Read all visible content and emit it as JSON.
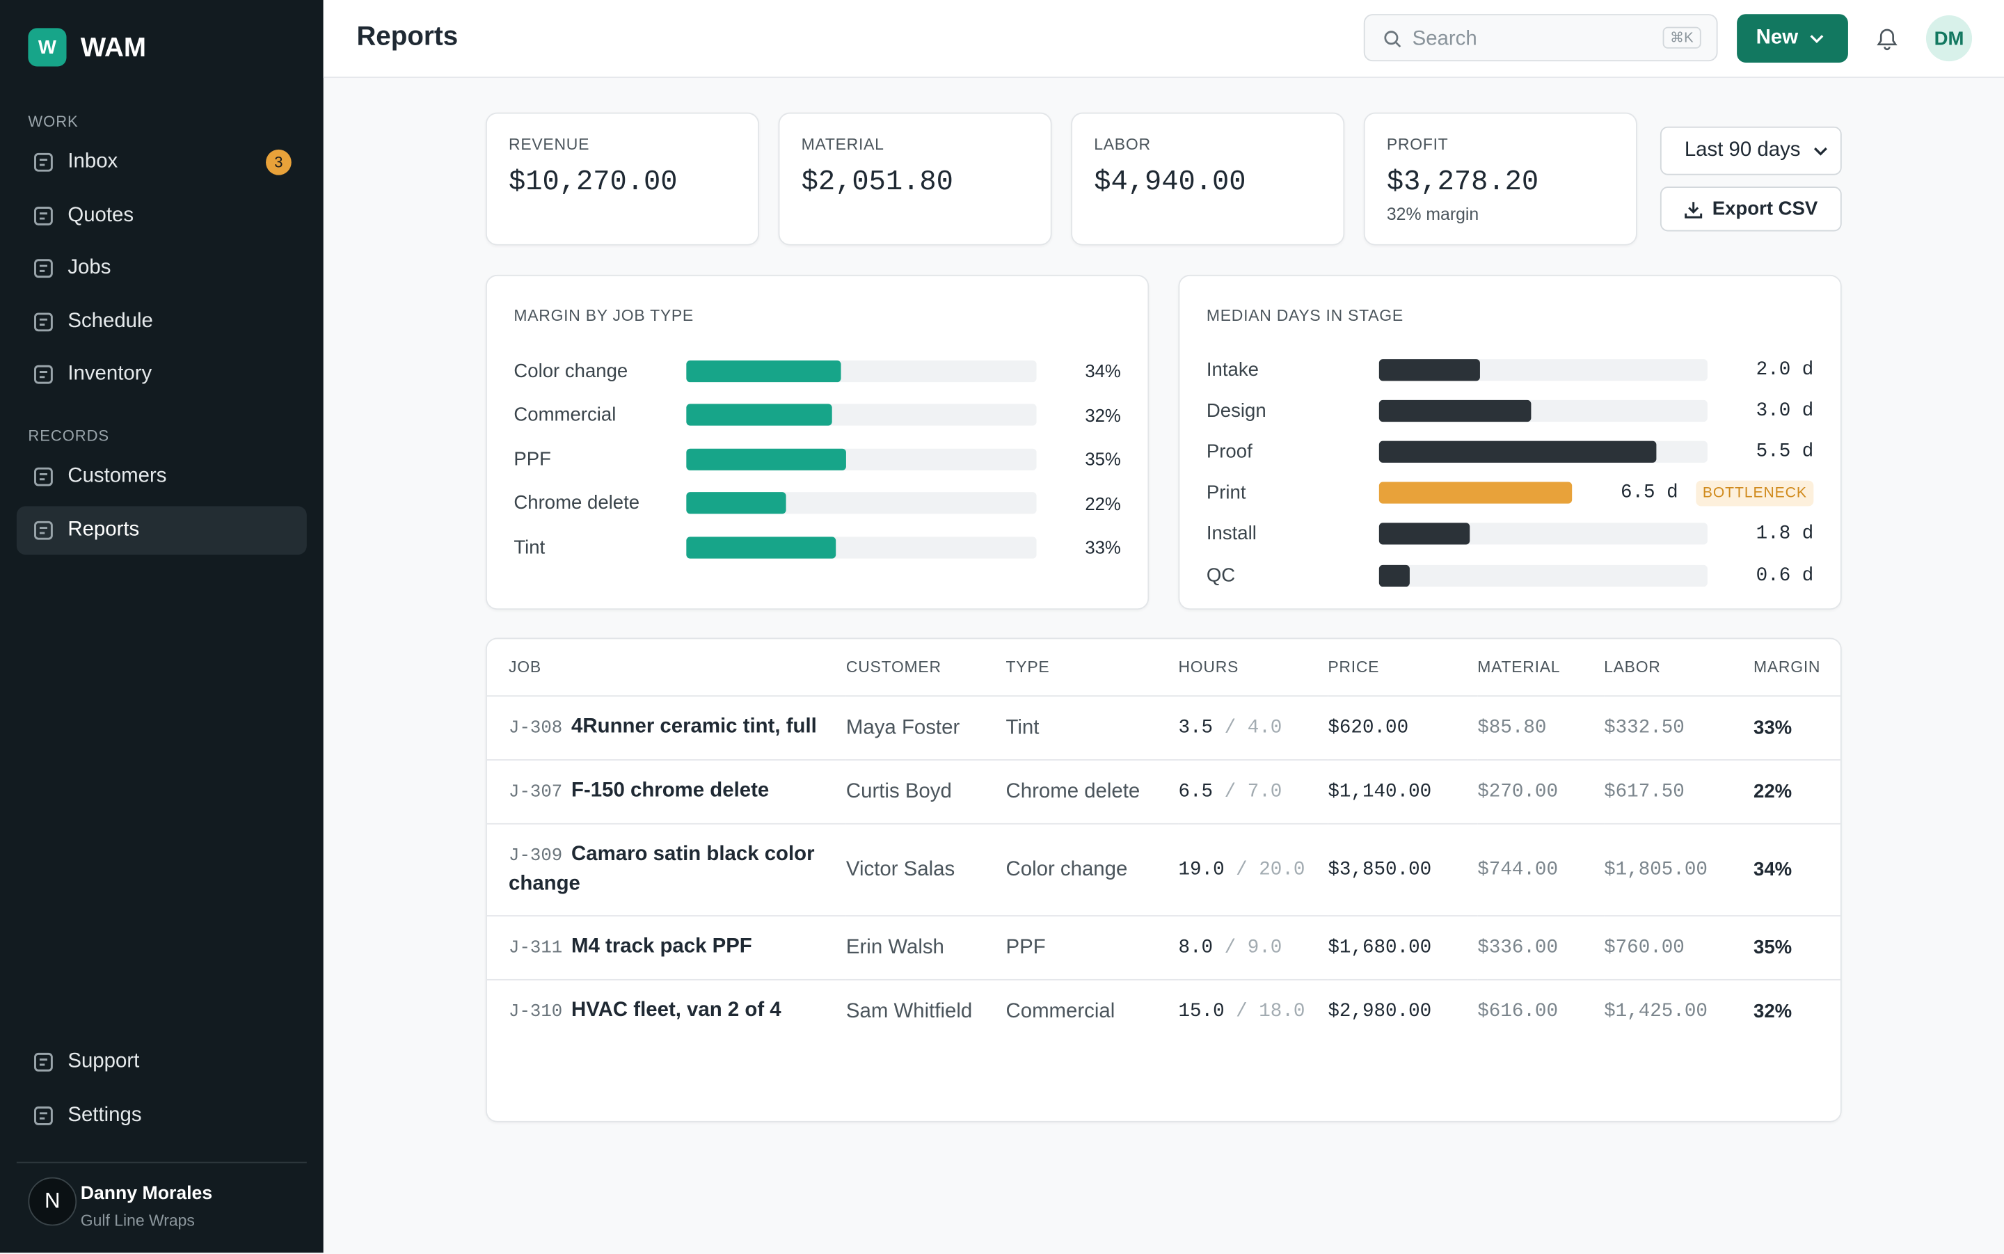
{
  "app": {
    "logo": "W",
    "name": "WAM"
  },
  "sidebar": {
    "sections": [
      {
        "title": "WORK",
        "items": [
          {
            "label": "Inbox",
            "badge": "3"
          },
          {
            "label": "Quotes"
          },
          {
            "label": "Jobs"
          },
          {
            "label": "Schedule"
          },
          {
            "label": "Inventory"
          }
        ]
      },
      {
        "title": "RECORDS",
        "items": [
          {
            "label": "Customers"
          },
          {
            "label": "Reports",
            "active": true
          }
        ]
      }
    ],
    "footer_items": [
      "Support",
      "Settings"
    ],
    "user": {
      "initial": "N",
      "name": "Danny Morales",
      "org": "Gulf Line Wraps"
    }
  },
  "header": {
    "title": "Reports",
    "search_placeholder": "Search",
    "shortcut": "⌘K",
    "new_button": "New",
    "avatar": "DM"
  },
  "kpis": [
    {
      "label": "REVENUE",
      "value": "$10,270.00"
    },
    {
      "label": "MATERIAL",
      "value": "$2,051.80"
    },
    {
      "label": "LABOR",
      "value": "$4,940.00"
    },
    {
      "label": "PROFIT",
      "value": "$3,278.20",
      "note": "32% margin"
    }
  ],
  "controls": {
    "range": "Last 90 days",
    "export": "Export CSV"
  },
  "margin_chart": {
    "title": "MARGIN BY JOB TYPE",
    "categories": [
      "Color change",
      "Commercial",
      "PPF",
      "Chrome delete",
      "Tint"
    ],
    "values": [
      34,
      32,
      35,
      22,
      33
    ],
    "value_labels": [
      "34%",
      "32%",
      "35%",
      "22%",
      "33%"
    ],
    "xlim": [
      0,
      77
    ],
    "color": "#17a589"
  },
  "stage_chart": {
    "title": "MEDIAN DAYS IN STAGE",
    "categories": [
      "Intake",
      "Design",
      "Proof",
      "Print",
      "Install",
      "QC"
    ],
    "values": [
      2.0,
      3.0,
      5.5,
      6.5,
      1.8,
      0.6
    ],
    "value_labels": [
      "2.0 d",
      "3.0 d",
      "5.5 d",
      "6.5 d",
      "1.8 d",
      "0.6 d"
    ],
    "xlim": [
      0,
      6.5
    ],
    "color": "#2b3238",
    "highlight": {
      "index": 3,
      "label": "BOTTLENECK",
      "color": "#e8a23a"
    }
  },
  "table": {
    "columns": [
      "JOB",
      "CUSTOMER",
      "TYPE",
      "HOURS",
      "PRICE",
      "MATERIAL",
      "LABOR",
      "MARGIN"
    ],
    "rows": [
      {
        "id": "J-308",
        "title": "4Runner ceramic tint, full",
        "customer": "Maya Foster",
        "type": "Tint",
        "hours": "3.5",
        "hours_est": "/ 4.0",
        "price": "$620.00",
        "material": "$85.80",
        "labor": "$332.50",
        "margin": "33%"
      },
      {
        "id": "J-307",
        "title": "F-150 chrome delete",
        "customer": "Curtis Boyd",
        "type": "Chrome delete",
        "hours": "6.5",
        "hours_est": "/ 7.0",
        "price": "$1,140.00",
        "material": "$270.00",
        "labor": "$617.50",
        "margin": "22%"
      },
      {
        "id": "J-309",
        "title": "Camaro satin black color change",
        "customer": "Victor Salas",
        "type": "Color change",
        "hours": "19.0",
        "hours_est": "/ 20.0",
        "price": "$3,850.00",
        "material": "$744.00",
        "labor": "$1,805.00",
        "margin": "34%"
      },
      {
        "id": "J-311",
        "title": "M4 track pack PPF",
        "customer": "Erin Walsh",
        "type": "PPF",
        "hours": "8.0",
        "hours_est": "/ 9.0",
        "price": "$1,680.00",
        "material": "$336.00",
        "labor": "$760.00",
        "margin": "35%"
      },
      {
        "id": "J-310",
        "title": "HVAC fleet, van 2 of 4",
        "customer": "Sam Whitfield",
        "type": "Commercial",
        "hours": "15.0",
        "hours_est": "/ 18.0",
        "price": "$2,980.00",
        "material": "$616.00",
        "labor": "$1,425.00",
        "margin": "32%"
      }
    ]
  }
}
